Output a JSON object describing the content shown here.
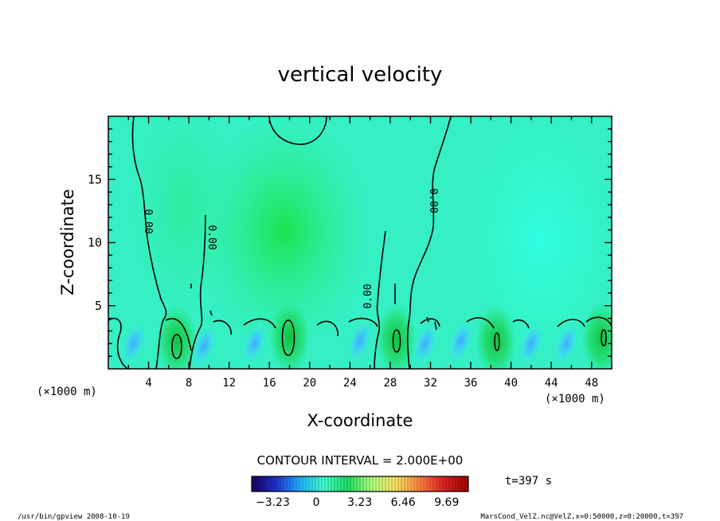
{
  "chart_data": {
    "type": "heatmap",
    "title": "vertical velocity",
    "xlabel": "X-coordinate",
    "ylabel": "Z-coordinate",
    "x_unit_left": "(×1000 m)",
    "x_unit_right": "(×1000 m)",
    "xlim": [
      0,
      50
    ],
    "ylim": [
      0,
      20
    ],
    "x_ticks": [
      4,
      8,
      12,
      16,
      20,
      24,
      28,
      32,
      36,
      40,
      44,
      48
    ],
    "y_ticks": [
      5,
      10,
      15
    ],
    "contour_label": "0.00",
    "contour_interval": "CONTOUR INTERVAL = 2.000E+00",
    "colorbar": {
      "ticks": [
        "−3.23",
        "0",
        "3.23",
        "6.46",
        "9.69"
      ],
      "range": [
        -4.8,
        11.3
      ],
      "colors": [
        "#1a0060",
        "#2030d0",
        "#20b0ff",
        "#40ffd0",
        "#20e060",
        "#b0ff80",
        "#ffe060",
        "#ff8040",
        "#e02020",
        "#a00000"
      ]
    },
    "time_label": "t=397 s",
    "footer_left": "/usr/bin/gpview   2008-10-19",
    "footer_right": "MarsCond_VelZ.nc@VelZ,x=0:50000,z=0:20000,t=397",
    "updraft_cores": [
      {
        "x": 6.8,
        "z": 2.2
      },
      {
        "x": 18.0,
        "z": 2.5
      },
      {
        "x": 28.6,
        "z": 2.3
      },
      {
        "x": 38.5,
        "z": 2.2
      },
      {
        "x": 49.0,
        "z": 2.4
      }
    ],
    "downdraft_cores": [
      {
        "x": 2.5,
        "z": 2.0
      },
      {
        "x": 9.5,
        "z": 1.8
      },
      {
        "x": 14.5,
        "z": 2.0
      },
      {
        "x": 25.0,
        "z": 2.2
      },
      {
        "x": 31.5,
        "z": 2.0
      },
      {
        "x": 35.0,
        "z": 2.2
      },
      {
        "x": 42.0,
        "z": 2.0
      },
      {
        "x": 45.5,
        "z": 2.0
      }
    ]
  }
}
